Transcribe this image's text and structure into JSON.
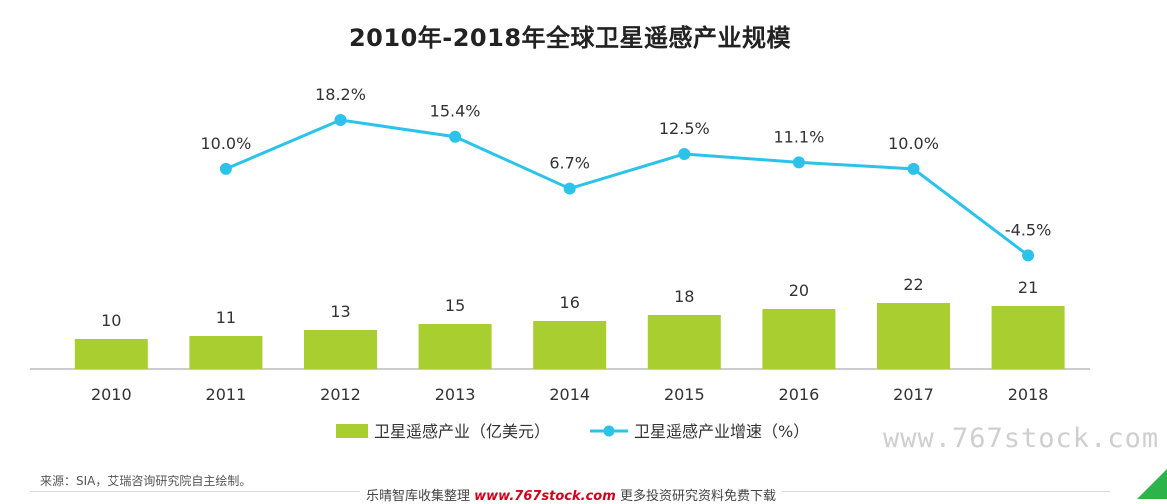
{
  "chart_data": {
    "type": "bar+line",
    "title": "2010年-2018年全球卫星遥感产业规模",
    "categories": [
      "2010",
      "2011",
      "2012",
      "2013",
      "2014",
      "2015",
      "2016",
      "2017",
      "2018"
    ],
    "series": [
      {
        "name": "卫星遥感产业（亿美元）",
        "type": "bar",
        "values": [
          10,
          11,
          13,
          15,
          16,
          18,
          20,
          22,
          21
        ],
        "labels": [
          "10",
          "11",
          "13",
          "15",
          "16",
          "18",
          "20",
          "22",
          "21"
        ],
        "color": "#a9ce2f"
      },
      {
        "name": "卫星遥感产业增速（%）",
        "type": "line",
        "values": [
          null,
          10.0,
          18.2,
          15.4,
          6.7,
          12.5,
          11.1,
          10.0,
          -4.5
        ],
        "labels": [
          "",
          "10.0%",
          "18.2%",
          "15.4%",
          "6.7%",
          "12.5%",
          "11.1%",
          "10.0%",
          "-4.5%"
        ],
        "color": "#2bc3ea"
      }
    ],
    "legend_position": "bottom-center"
  },
  "source_note": "来源：SIA，艾瑞咨询研究院自主绘制。",
  "watermark": "www.767stock.com",
  "footer": {
    "prefix": "乐晴智库收集整理",
    "site": "www.767stock.com",
    "suffix": "更多投资研究资料免费下载"
  }
}
